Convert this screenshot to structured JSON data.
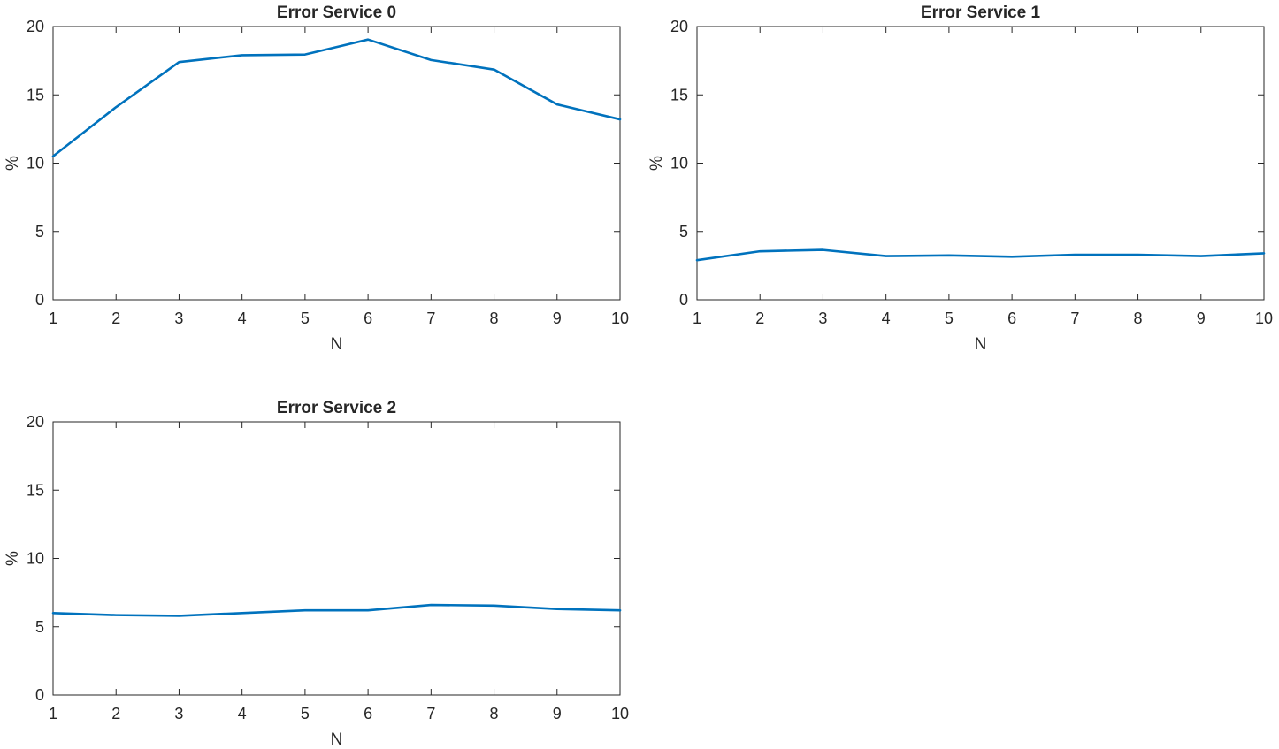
{
  "colors": {
    "series": "#0072BD",
    "axes": "#262626",
    "background": "#ffffff"
  },
  "chart_data": [
    {
      "type": "line",
      "title": "Error Service 0",
      "xlabel": "N",
      "ylabel": "%",
      "xlim": [
        1,
        10
      ],
      "ylim": [
        0,
        20
      ],
      "xticks": [
        1,
        2,
        3,
        4,
        5,
        6,
        7,
        8,
        9,
        10
      ],
      "yticks": [
        0,
        5,
        10,
        15,
        20
      ],
      "grid": false,
      "x": [
        1,
        2,
        3,
        4,
        5,
        6,
        7,
        8,
        9,
        10
      ],
      "series": [
        {
          "values": [
            10.5,
            14.1,
            17.4,
            17.9,
            17.95,
            19.05,
            17.55,
            16.85,
            14.3,
            13.2
          ]
        }
      ]
    },
    {
      "type": "line",
      "title": "Error Service 1",
      "xlabel": "N",
      "ylabel": "%",
      "xlim": [
        1,
        10
      ],
      "ylim": [
        0,
        20
      ],
      "xticks": [
        1,
        2,
        3,
        4,
        5,
        6,
        7,
        8,
        9,
        10
      ],
      "yticks": [
        0,
        5,
        10,
        15,
        20
      ],
      "grid": false,
      "x": [
        1,
        2,
        3,
        4,
        5,
        6,
        7,
        8,
        9,
        10
      ],
      "series": [
        {
          "values": [
            2.9,
            3.55,
            3.65,
            3.2,
            3.25,
            3.15,
            3.3,
            3.3,
            3.2,
            3.4
          ]
        }
      ]
    },
    {
      "type": "line",
      "title": "Error Service 2",
      "xlabel": "N",
      "ylabel": "%",
      "xlim": [
        1,
        10
      ],
      "ylim": [
        0,
        20
      ],
      "xticks": [
        1,
        2,
        3,
        4,
        5,
        6,
        7,
        8,
        9,
        10
      ],
      "yticks": [
        0,
        5,
        10,
        15,
        20
      ],
      "grid": false,
      "x": [
        1,
        2,
        3,
        4,
        5,
        6,
        7,
        8,
        9,
        10
      ],
      "series": [
        {
          "values": [
            6.0,
            5.85,
            5.8,
            6.0,
            6.2,
            6.2,
            6.6,
            6.55,
            6.3,
            6.2
          ]
        }
      ]
    }
  ]
}
